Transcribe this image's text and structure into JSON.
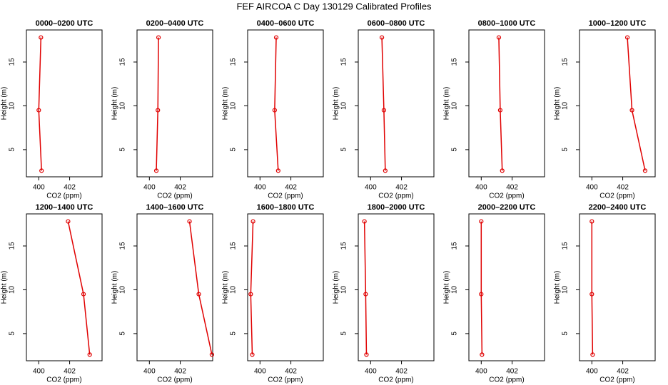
{
  "title": "FEF AIRCOA C  Day 130129  Calibrated Profiles",
  "chart_data": [
    {
      "type": "line",
      "title": "0000–0200 UTC",
      "xlabel": "CO2 (ppm)",
      "ylabel": "Height (m)",
      "color": "#e00000",
      "x": [
        400.18,
        400.0,
        400.14
      ],
      "y": [
        2.6,
        9.5,
        17.8
      ],
      "xlim": [
        399.2,
        404.1
      ],
      "ylim": [
        1.9,
        18.66
      ],
      "xticks": [
        400,
        402
      ],
      "yticks": [
        5,
        10,
        15
      ]
    },
    {
      "type": "line",
      "title": "0200–0400 UTC",
      "xlabel": "CO2 (ppm)",
      "ylabel": "Height (m)",
      "color": "#e00000",
      "x": [
        400.45,
        400.55,
        400.59
      ],
      "y": [
        2.6,
        9.5,
        17.8
      ],
      "xlim": [
        399.2,
        404.1
      ],
      "ylim": [
        1.9,
        18.66
      ],
      "xticks": [
        400,
        402
      ],
      "yticks": [
        5,
        10,
        15
      ]
    },
    {
      "type": "line",
      "title": "0400–0600 UTC",
      "xlabel": "CO2 (ppm)",
      "ylabel": "Height (m)",
      "color": "#e00000",
      "x": [
        401.18,
        400.95,
        401.05
      ],
      "y": [
        2.6,
        9.5,
        17.8
      ],
      "xlim": [
        399.2,
        404.1
      ],
      "ylim": [
        1.9,
        18.66
      ],
      "xticks": [
        400,
        402
      ],
      "yticks": [
        5,
        10,
        15
      ]
    },
    {
      "type": "line",
      "title": "0600–0800 UTC",
      "xlabel": "CO2 (ppm)",
      "ylabel": "Height (m)",
      "color": "#e00000",
      "x": [
        400.95,
        400.86,
        400.73
      ],
      "y": [
        2.6,
        9.5,
        17.8
      ],
      "xlim": [
        399.2,
        404.1
      ],
      "ylim": [
        1.9,
        18.66
      ],
      "xticks": [
        400,
        402
      ],
      "yticks": [
        5,
        10,
        15
      ]
    },
    {
      "type": "line",
      "title": "0800–1000 UTC",
      "xlabel": "CO2 (ppm)",
      "ylabel": "Height (m)",
      "color": "#e00000",
      "x": [
        401.36,
        401.23,
        401.14
      ],
      "y": [
        2.6,
        9.5,
        17.8
      ],
      "xlim": [
        399.2,
        404.1
      ],
      "ylim": [
        1.9,
        18.66
      ],
      "xticks": [
        400,
        402
      ],
      "yticks": [
        5,
        10,
        15
      ]
    },
    {
      "type": "line",
      "title": "1000–1200 UTC",
      "xlabel": "CO2 (ppm)",
      "ylabel": "Height (m)",
      "color": "#e00000",
      "x": [
        403.45,
        402.6,
        402.3
      ],
      "y": [
        2.6,
        9.5,
        17.8
      ],
      "xlim": [
        399.2,
        404.1
      ],
      "ylim": [
        1.9,
        18.66
      ],
      "xticks": [
        400,
        402
      ],
      "yticks": [
        5,
        10,
        15
      ]
    },
    {
      "type": "line",
      "title": "1200–1400 UTC",
      "xlabel": "CO2 (ppm)",
      "ylabel": "Height (m)",
      "color": "#e00000",
      "x": [
        403.3,
        402.9,
        401.9
      ],
      "y": [
        2.6,
        9.5,
        17.8
      ],
      "xlim": [
        399.2,
        404.1
      ],
      "ylim": [
        1.9,
        18.66
      ],
      "xticks": [
        400,
        402
      ],
      "yticks": [
        5,
        10,
        15
      ]
    },
    {
      "type": "line",
      "title": "1400–1600 UTC",
      "xlabel": "CO2 (ppm)",
      "ylabel": "Height (m)",
      "color": "#e00000",
      "x": [
        404.05,
        403.2,
        402.6
      ],
      "y": [
        2.6,
        9.5,
        17.8
      ],
      "xlim": [
        399.2,
        404.1
      ],
      "ylim": [
        1.9,
        18.66
      ],
      "xticks": [
        400,
        402
      ],
      "yticks": [
        5,
        10,
        15
      ]
    },
    {
      "type": "line",
      "title": "1600–1800 UTC",
      "xlabel": "CO2 (ppm)",
      "ylabel": "Height (m)",
      "color": "#e00000",
      "x": [
        399.5,
        399.4,
        399.55
      ],
      "y": [
        2.6,
        9.5,
        17.8
      ],
      "xlim": [
        399.2,
        404.1
      ],
      "ylim": [
        1.9,
        18.66
      ],
      "xticks": [
        400,
        402
      ],
      "yticks": [
        5,
        10,
        15
      ]
    },
    {
      "type": "line",
      "title": "1800–2000 UTC",
      "xlabel": "CO2 (ppm)",
      "ylabel": "Height (m)",
      "color": "#e00000",
      "x": [
        399.73,
        399.68,
        399.6
      ],
      "y": [
        2.6,
        9.5,
        17.8
      ],
      "xlim": [
        399.2,
        404.1
      ],
      "ylim": [
        1.9,
        18.66
      ],
      "xticks": [
        400,
        402
      ],
      "yticks": [
        5,
        10,
        15
      ]
    },
    {
      "type": "line",
      "title": "2000–2200 UTC",
      "xlabel": "CO2 (ppm)",
      "ylabel": "Height (m)",
      "color": "#e00000",
      "x": [
        400.05,
        400.0,
        400.0
      ],
      "y": [
        2.6,
        9.5,
        17.8
      ],
      "xlim": [
        399.2,
        404.1
      ],
      "ylim": [
        1.9,
        18.66
      ],
      "xticks": [
        400,
        402
      ],
      "yticks": [
        5,
        10,
        15
      ]
    },
    {
      "type": "line",
      "title": "2200–2400 UTC",
      "xlabel": "CO2 (ppm)",
      "ylabel": "Height (m)",
      "color": "#e00000",
      "x": [
        400.05,
        400.0,
        400.0
      ],
      "y": [
        2.6,
        9.5,
        17.8
      ],
      "xlim": [
        399.2,
        404.1
      ],
      "ylim": [
        1.9,
        18.66
      ],
      "xticks": [
        400,
        402
      ],
      "yticks": [
        5,
        10,
        15
      ]
    }
  ]
}
